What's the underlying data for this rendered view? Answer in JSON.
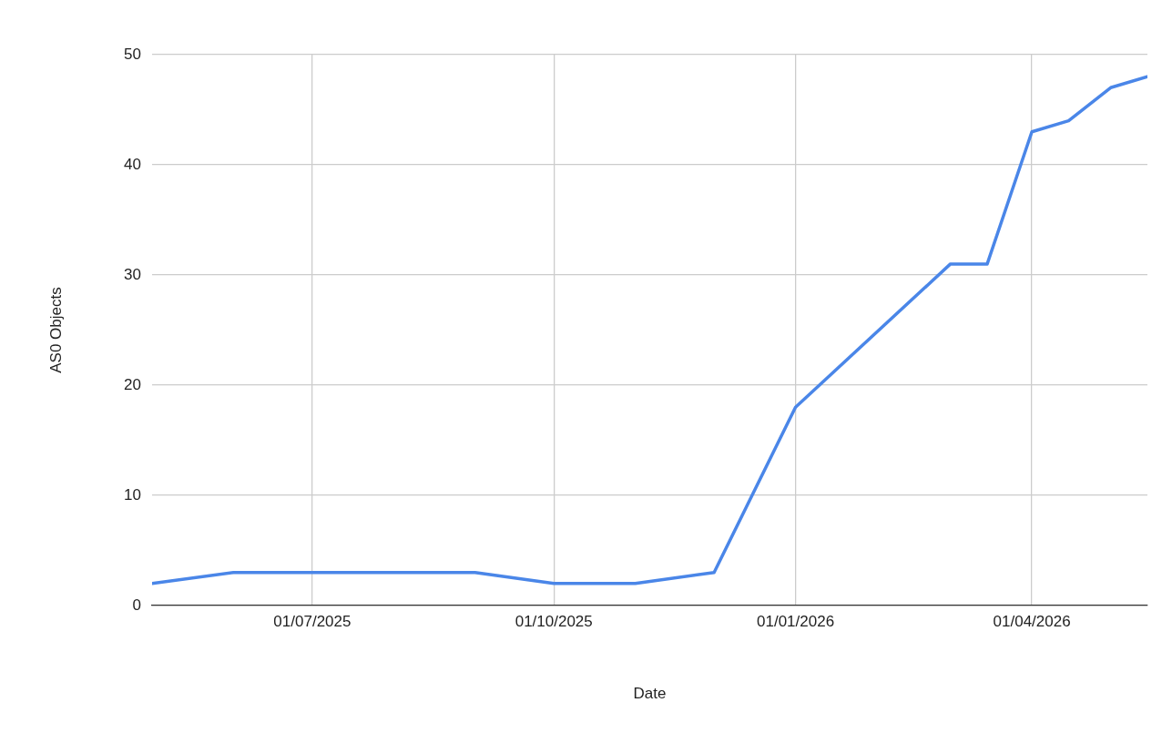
{
  "chart_data": {
    "type": "line",
    "xlabel": "Date",
    "ylabel": "AS0 Objects",
    "x": [
      "2025-05-01",
      "2025-06-01",
      "2025-09-01",
      "2025-10-01",
      "2025-11-01",
      "2025-12-01",
      "2026-01-01",
      "2026-03-01",
      "2026-03-15",
      "2026-04-01",
      "2026-04-15",
      "2026-05-01",
      "2026-05-15"
    ],
    "series": [
      {
        "color": "#4a86e8",
        "values": [
          2,
          3,
          3,
          2,
          2,
          3,
          18,
          31,
          31,
          43,
          44,
          47,
          48
        ]
      }
    ],
    "xlim": [
      "2025-05-01",
      "2026-05-15"
    ],
    "xticks": [
      {
        "value": "2025-07-01",
        "label": "01/07/2025"
      },
      {
        "value": "2025-10-01",
        "label": "01/10/2025"
      },
      {
        "value": "2026-01-01",
        "label": "01/01/2026"
      },
      {
        "value": "2026-04-01",
        "label": "01/04/2026"
      }
    ],
    "ylim": [
      0,
      50
    ],
    "yticks": [
      0,
      10,
      20,
      30,
      40,
      50
    ],
    "grid": true,
    "legend": false,
    "marker": "none",
    "line_style": "solid"
  }
}
